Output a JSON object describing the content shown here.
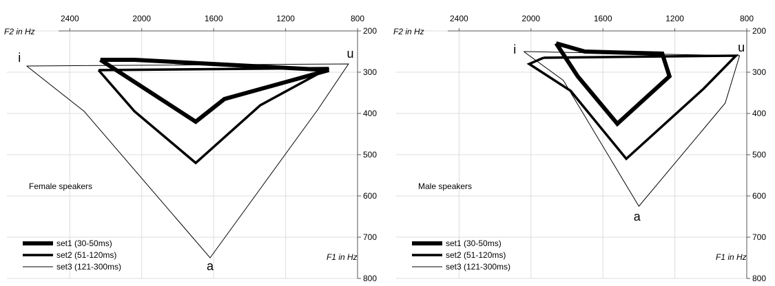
{
  "chart_data": [
    {
      "type": "line",
      "xlabel": "F2 in Hz",
      "ylabel": "F1 in Hz",
      "x_ticks": [
        2400,
        2000,
        1600,
        1200,
        800
      ],
      "y_ticks": [
        200,
        300,
        400,
        500,
        600,
        700,
        800
      ],
      "xlim": [
        2750,
        800
      ],
      "ylim": [
        200,
        800
      ],
      "x_axis": "reversed",
      "y_axis": "reversed",
      "grid": true,
      "annotation": "Female speakers",
      "vowel_labels": [
        {
          "text": "i",
          "f2": 2680,
          "f1": 275
        },
        {
          "text": "u",
          "f2": 840,
          "f1": 265
        },
        {
          "text": "a",
          "f2": 1620,
          "f1": 780
        }
      ],
      "series": [
        {
          "name": "set1 (30-50ms)",
          "stroke_width": 6,
          "points": [
            [
              2230,
              270
            ],
            [
              2040,
              270
            ],
            [
              960,
              295
            ],
            [
              1540,
              365
            ],
            [
              1700,
              420
            ],
            [
              2230,
              270
            ]
          ]
        },
        {
          "name": "set2 (51-120ms)",
          "stroke_width": 3.5,
          "points": [
            [
              2240,
              295
            ],
            [
              960,
              290
            ],
            [
              1340,
              380
            ],
            [
              1700,
              520
            ],
            [
              2040,
              395
            ],
            [
              2240,
              295
            ]
          ]
        },
        {
          "name": "set3 (121-300ms)",
          "stroke_width": 1,
          "points": [
            [
              2640,
              285
            ],
            [
              850,
              280
            ],
            [
              1020,
              390
            ],
            [
              1620,
              750
            ],
            [
              2320,
              395
            ],
            [
              2640,
              285
            ]
          ]
        }
      ]
    },
    {
      "type": "line",
      "xlabel": "F2 in Hz",
      "ylabel": "F1 in Hz",
      "x_ticks": [
        2400,
        2000,
        1600,
        1200,
        800
      ],
      "y_ticks": [
        200,
        300,
        400,
        500,
        600,
        700,
        800
      ],
      "xlim": [
        2750,
        800
      ],
      "ylim": [
        200,
        800
      ],
      "x_axis": "reversed",
      "y_axis": "reversed",
      "grid": true,
      "annotation": "Male speakers",
      "vowel_labels": [
        {
          "text": "i",
          "f2": 2090,
          "f1": 255
        },
        {
          "text": "u",
          "f2": 830,
          "f1": 250
        },
        {
          "text": "a",
          "f2": 1410,
          "f1": 660
        }
      ],
      "series": [
        {
          "name": "set1 (30-50ms)",
          "stroke_width": 6,
          "points": [
            [
              1860,
              230
            ],
            [
              1700,
              250
            ],
            [
              1270,
              255
            ],
            [
              1230,
              310
            ],
            [
              1520,
              425
            ],
            [
              1740,
              310
            ],
            [
              1860,
              230
            ]
          ]
        },
        {
          "name": "set2 (51-120ms)",
          "stroke_width": 3.5,
          "points": [
            [
              1930,
              265
            ],
            [
              860,
              260
            ],
            [
              1040,
              340
            ],
            [
              1470,
              510
            ],
            [
              1780,
              345
            ],
            [
              2010,
              280
            ],
            [
              1930,
              265
            ]
          ]
        },
        {
          "name": "set3 (121-300ms)",
          "stroke_width": 1,
          "points": [
            [
              2040,
              250
            ],
            [
              840,
              260
            ],
            [
              920,
              375
            ],
            [
              1400,
              625
            ],
            [
              1820,
              320
            ],
            [
              2040,
              250
            ]
          ]
        }
      ]
    }
  ]
}
